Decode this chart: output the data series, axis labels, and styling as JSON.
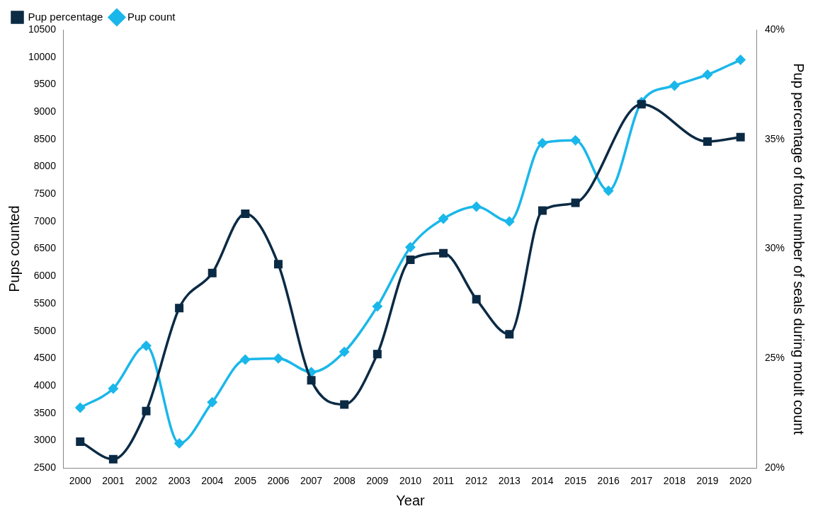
{
  "chart_data": {
    "type": "line",
    "xlabel": "Year",
    "ylabel": "Pups counted",
    "y2label": "Pup percentage of total number of seals during moult count",
    "categories": [
      "2000",
      "2001",
      "2002",
      "2003",
      "2004",
      "2005",
      "2006",
      "2007",
      "2008",
      "2009",
      "2010",
      "2011",
      "2012",
      "2013",
      "2014",
      "2015",
      "2016",
      "2017",
      "2018",
      "2019",
      "2020"
    ],
    "series": [
      {
        "name": "Pup count",
        "color": "#1ab7ea",
        "marker": "diamond",
        "values": [
          3600,
          3950,
          4730,
          2950,
          3700,
          4480,
          4500,
          4250,
          4620,
          5450,
          6530,
          7050,
          7270,
          7000,
          8430,
          8480,
          7560,
          9180,
          9480,
          9680,
          9950
        ]
      },
      {
        "name": "Pup percentage",
        "color": "#0b2a44",
        "marker": "square",
        "axis": "y2",
        "values": [
          21.2,
          20.4,
          22.6,
          27.3,
          28.9,
          31.6,
          29.3,
          24.0,
          22.9,
          25.2,
          29.5,
          29.8,
          27.7,
          26.1,
          31.75,
          32.1,
          null,
          36.6,
          null,
          34.9,
          35.1
        ]
      }
    ],
    "ylim": [
      2500,
      10500
    ],
    "yticks": [
      2500,
      3000,
      3500,
      4000,
      4500,
      5000,
      5500,
      6000,
      6500,
      7000,
      7500,
      8000,
      8500,
      9000,
      9500,
      10000,
      10500
    ],
    "y2lim": [
      20,
      40
    ],
    "y2ticks": [
      {
        "value": 20,
        "label": "20%"
      },
      {
        "value": 25,
        "label": "25%"
      },
      {
        "value": 30,
        "label": "30%"
      },
      {
        "value": 35,
        "label": "35%"
      },
      {
        "value": 40,
        "label": "40%"
      }
    ],
    "grid": false,
    "legend": "top left"
  }
}
